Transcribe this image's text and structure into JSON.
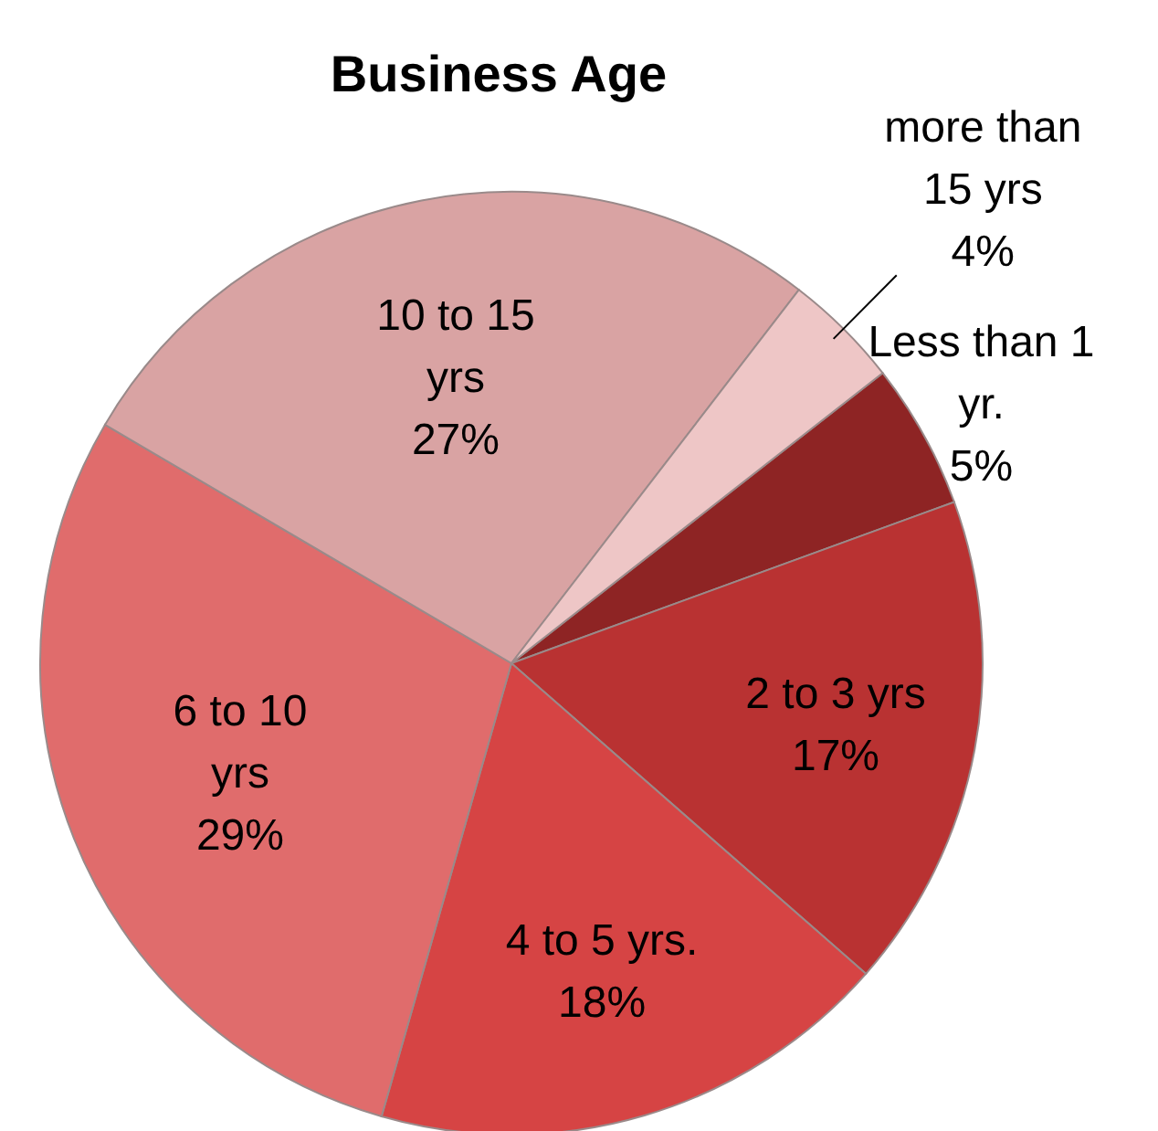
{
  "chart_data": {
    "type": "pie",
    "title": "Business Age",
    "categories": [
      "Less than 1 yr.",
      "2 to 3 yrs",
      "4 to 5 yrs.",
      "6 to 10 yrs",
      "10 to 15 yrs",
      "more than 15 yrs"
    ],
    "values": [
      5,
      17,
      18,
      29,
      27,
      4
    ],
    "colors": [
      "#8e2424",
      "#b93232",
      "#d64444",
      "#e06c6c",
      "#d9a3a3",
      "#eec6c6"
    ],
    "value_labels": [
      "5%",
      "17%",
      "18%",
      "29%",
      "27%",
      "4%"
    ],
    "legend": false
  }
}
